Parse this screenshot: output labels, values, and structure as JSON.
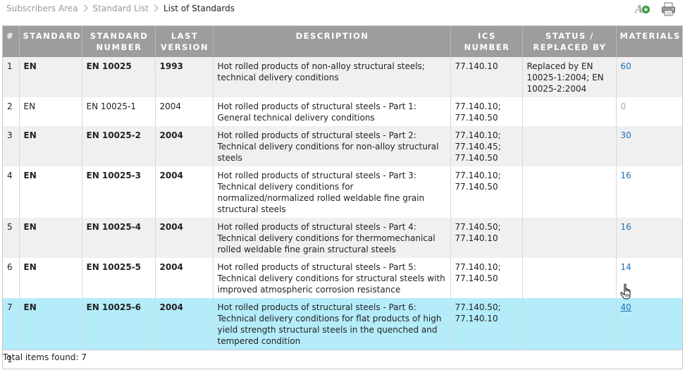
{
  "breadcrumb": {
    "items": [
      "Subscribers Area",
      "Standard List"
    ],
    "current": "List of Standards"
  },
  "toolbar": {
    "add_icon": "add-to-list-icon",
    "print_icon": "printer-icon"
  },
  "table": {
    "headers": {
      "num": "#",
      "standard": "STANDARD",
      "standard_number": "STANDARD NUMBER",
      "last_version": "LAST VERSION",
      "description": "DESCRIPTION",
      "ics_number": "ICS NUMBER",
      "status": "STATUS / REPLACED BY",
      "materials": "MATERIALS"
    },
    "rows": [
      {
        "num": "1",
        "standard": "EN",
        "standard_number": "EN 10025",
        "last_version": "1993",
        "description": "Hot rolled products of non-alloy structural steels; technical delivery conditions",
        "ics": "77.140.10",
        "status": "Replaced by EN 10025-1:2004; EN 10025-2:2004",
        "materials": "60"
      },
      {
        "num": "2",
        "standard": "EN",
        "standard_number": "EN 10025-1",
        "last_version": "2004",
        "description": "Hot rolled products of structural steels - Part 1: General technical delivery conditions",
        "ics": "77.140.10; 77.140.50",
        "status": "",
        "materials": "0"
      },
      {
        "num": "3",
        "standard": "EN",
        "standard_number": "EN 10025-2",
        "last_version": "2004",
        "description": "Hot rolled products of structural steels - Part 2: Technical delivery conditions for non-alloy structural steels",
        "ics": "77.140.10; 77.140.45; 77.140.50",
        "status": "",
        "materials": "30"
      },
      {
        "num": "4",
        "standard": "EN",
        "standard_number": "EN 10025-3",
        "last_version": "2004",
        "description": "Hot rolled products of structural steels - Part 3: Technical delivery conditions for normalized/normalized rolled weldable fine grain structural steels",
        "ics": "77.140.10; 77.140.50",
        "status": "",
        "materials": "16"
      },
      {
        "num": "5",
        "standard": "EN",
        "standard_number": "EN 10025-4",
        "last_version": "2004",
        "description": "Hot rolled products of structural steels - Part 4: Technical delivery conditions for thermomechanical rolled weldable fine grain structural steels",
        "ics": "77.140.50; 77.140.10",
        "status": "",
        "materials": "16"
      },
      {
        "num": "6",
        "standard": "EN",
        "standard_number": "EN 10025-5",
        "last_version": "2004",
        "description": "Hot rolled products of structural steels - Part 5: Technical delivery conditions for structural steels with improved atmospheric corrosion resistance",
        "ics": "77.140.10; 77.140.50",
        "status": "",
        "materials": "14"
      },
      {
        "num": "7",
        "standard": "EN",
        "standard_number": "EN 10025-6",
        "last_version": "2004",
        "description": "Hot rolled products of structural steels - Part 6: Technical delivery conditions for flat products of high yield strength structural steels in the quenched and tempered condition",
        "ics": "77.140.50; 77.140.10",
        "status": "",
        "materials": "40"
      }
    ],
    "pager": {
      "page": "1"
    }
  },
  "footer": {
    "total": "Total items found: 7"
  },
  "colors": {
    "header_bg": "#9d9d9d",
    "row_alt": "#f0f0f0",
    "row_hover": "#b4ecfa",
    "link": "#1f6fb8"
  }
}
